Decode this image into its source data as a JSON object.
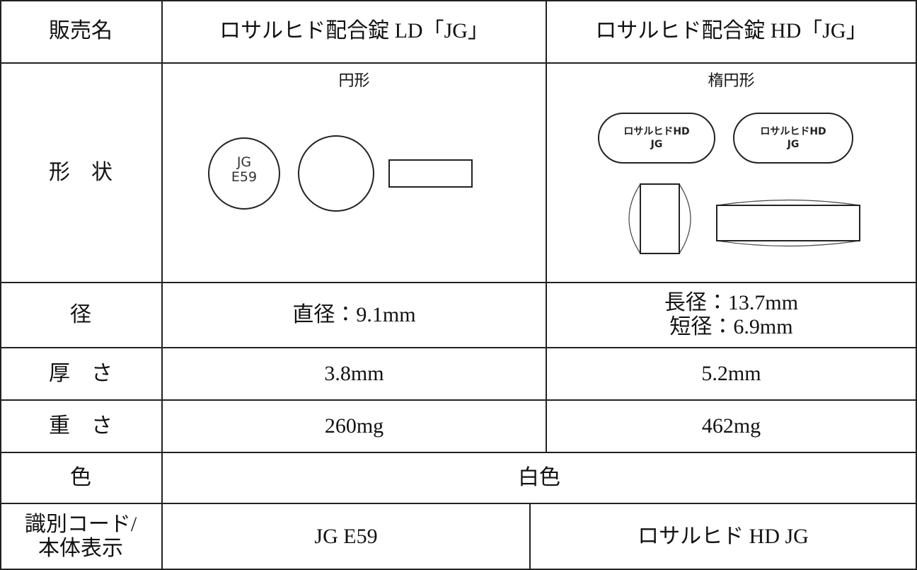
{
  "table": {
    "rows": [
      {
        "label": [
          "販売名"
        ],
        "cells": [
          [
            "ロサルヒド配合錠 LD「JG」"
          ],
          [
            "ロサルヒド配合錠 HD「JG」"
          ]
        ]
      },
      {
        "label": [
          "形　状"
        ],
        "cells": [
          {
            "caption": "円形",
            "imprint": [
              "JG",
              "E59"
            ]
          },
          {
            "caption": "楕円形",
            "imprint": [
              "ロサルヒドHD",
              "JG"
            ]
          }
        ]
      },
      {
        "label": [
          "径"
        ],
        "cells": [
          [
            "直径：9.1mm"
          ],
          [
            "長径：13.7mm",
            "短径：6.9mm"
          ]
        ]
      },
      {
        "label": [
          "厚　さ"
        ],
        "cells": [
          [
            "3.8mm"
          ],
          [
            "5.2mm"
          ]
        ]
      },
      {
        "label": [
          "重　さ"
        ],
        "cells": [
          [
            "260mg"
          ],
          [
            "462mg"
          ]
        ]
      },
      {
        "label": [
          "色"
        ],
        "cells": [
          [
            "白色"
          ]
        ]
      },
      {
        "label": [
          "識別コード/",
          "本体表示"
        ],
        "cells": [
          [
            "JG E59"
          ],
          [
            "ロサルヒド HD JG"
          ]
        ]
      }
    ]
  }
}
